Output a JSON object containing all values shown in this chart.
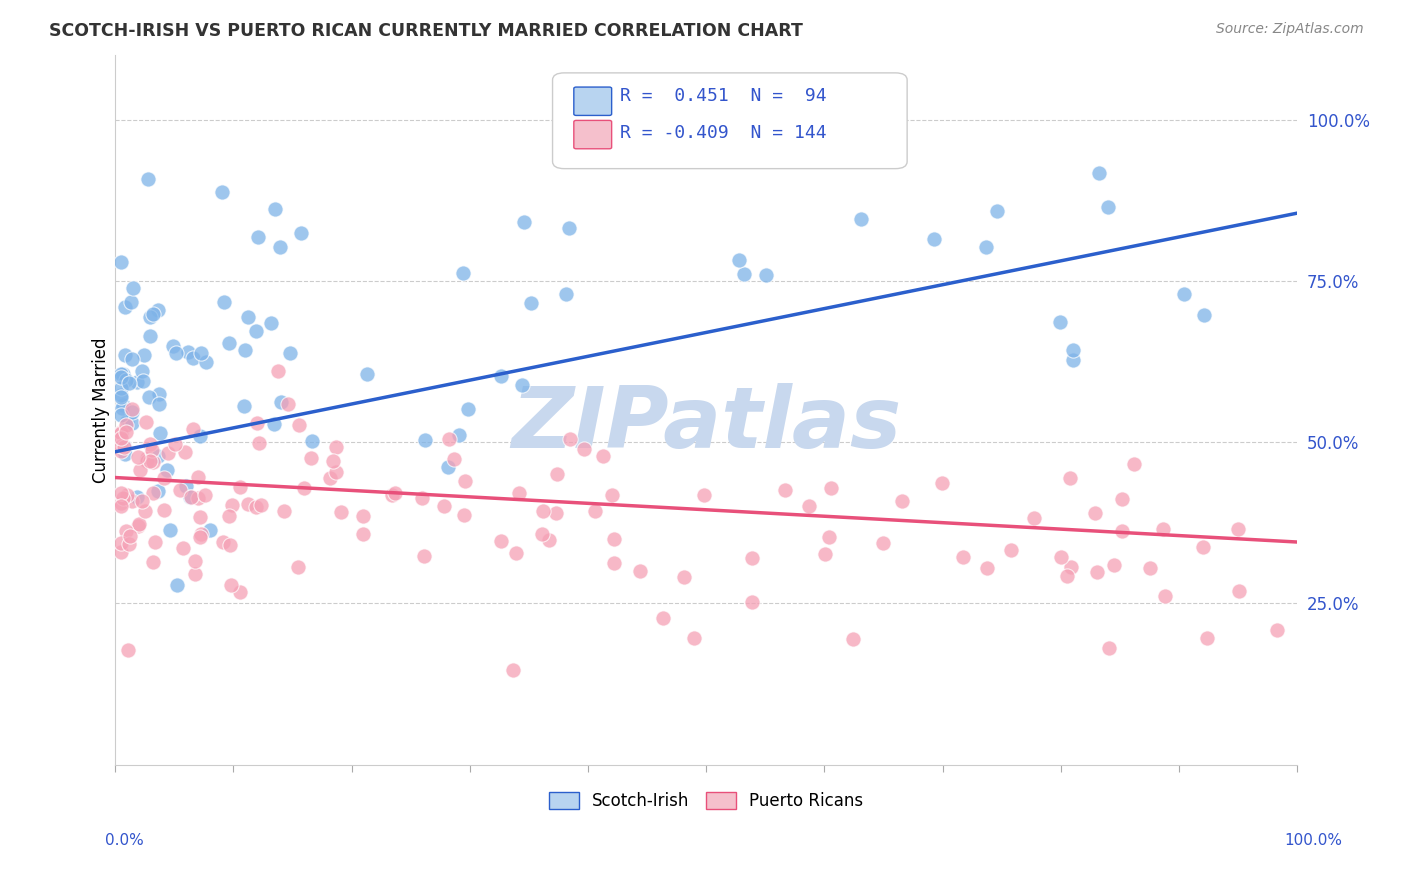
{
  "title": "SCOTCH-IRISH VS PUERTO RICAN CURRENTLY MARRIED CORRELATION CHART",
  "source": "Source: ZipAtlas.com",
  "ylabel": "Currently Married",
  "y_tick_labels": [
    "25.0%",
    "50.0%",
    "75.0%",
    "100.0%"
  ],
  "y_tick_positions": [
    0.25,
    0.5,
    0.75,
    1.0
  ],
  "blue_R": 0.451,
  "blue_N": 94,
  "pink_R": -0.409,
  "pink_N": 144,
  "blue_dot_color": "#7EB3E8",
  "pink_dot_color": "#F5A0B5",
  "blue_line_color": "#2B5FCC",
  "pink_line_color": "#E8507A",
  "blue_legend_fill": "#B8D4F0",
  "pink_legend_fill": "#F5C0CC",
  "legend_text_color": "#3355CC",
  "grid_color": "#CCCCCC",
  "background_color": "#FFFFFF",
  "watermark_text": "ZIPatlas",
  "watermark_color": "#C8D8EE",
  "axis_label_color": "#3355CC",
  "title_color": "#333333",
  "source_color": "#888888",
  "xlim": [
    0.0,
    1.0
  ],
  "ylim": [
    0.0,
    1.1
  ],
  "blue_trend_start_y": 0.485,
  "blue_trend_end_y": 0.855,
  "pink_trend_start_y": 0.445,
  "pink_trend_end_y": 0.345
}
